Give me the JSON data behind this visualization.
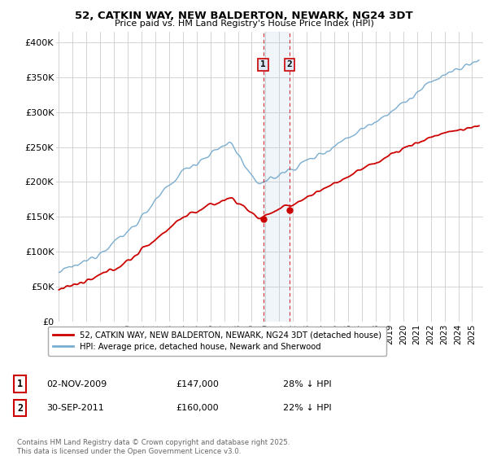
{
  "title1": "52, CATKIN WAY, NEW BALDERTON, NEWARK, NG24 3DT",
  "title2": "Price paid vs. HM Land Registry's House Price Index (HPI)",
  "ylabel_ticks": [
    "£0",
    "£50K",
    "£100K",
    "£150K",
    "£200K",
    "£250K",
    "£300K",
    "£350K",
    "£400K"
  ],
  "ytick_values": [
    0,
    50000,
    100000,
    150000,
    200000,
    250000,
    300000,
    350000,
    400000
  ],
  "ylim": [
    0,
    415000
  ],
  "hpi_color": "#7aadcf",
  "price_color": "#cc0000",
  "marker1_date": 2009.83,
  "marker2_date": 2011.75,
  "marker1_price": 147000,
  "marker2_price": 160000,
  "legend_label1": "52, CATKIN WAY, NEW BALDERTON, NEWARK, NG24 3DT (detached house)",
  "legend_label2": "HPI: Average price, detached house, Newark and Sherwood",
  "table_row1": [
    "1",
    "02-NOV-2009",
    "£147,000",
    "28% ↓ HPI"
  ],
  "table_row2": [
    "2",
    "30-SEP-2011",
    "£160,000",
    "22% ↓ HPI"
  ],
  "footer": "Contains HM Land Registry data © Crown copyright and database right 2025.\nThis data is licensed under the Open Government Licence v3.0.",
  "bg_color": "#ffffff",
  "grid_color": "#cccccc",
  "box_fill": "#dce8f5",
  "vline_color": "#cc0000"
}
